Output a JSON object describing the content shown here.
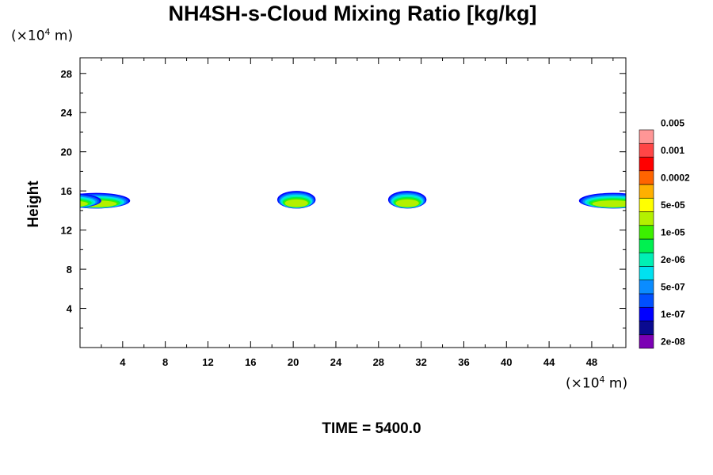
{
  "chart_data": {
    "type": "heatmap",
    "title": "NH4SH-s-Cloud Mixing Ratio [kg/kg]",
    "ylabel": "Height",
    "x_unit_prefix": "(×10",
    "x_unit_exp": "4",
    "x_unit_suffix": " m)",
    "y_unit_prefix": "(×10",
    "y_unit_exp": "4",
    "y_unit_suffix": " m)",
    "xlim": [
      0,
      51.2
    ],
    "ylim": [
      0,
      29.6
    ],
    "x_ticks": [
      4,
      8,
      12,
      16,
      20,
      24,
      28,
      32,
      36,
      40,
      44,
      48
    ],
    "y_ticks": [
      4,
      8,
      12,
      16,
      20,
      24,
      28
    ],
    "footer": "TIME = 5400.0",
    "colorbar": {
      "colors": [
        "#7b00b4",
        "#0a0a90",
        "#0000ff",
        "#0050ff",
        "#0a8cff",
        "#00e1f0",
        "#00f0b4",
        "#00f050",
        "#3cf000",
        "#b4f000",
        "#ffff00",
        "#ffb000",
        "#ff6400",
        "#ff0000",
        "#ff4646",
        "#ff9696"
      ],
      "labels": [
        "2e-08",
        "1e-07",
        "5e-07",
        "2e-06",
        "1e-05",
        "5e-05",
        "0.0002",
        "0.001",
        "0.005"
      ]
    },
    "cloud_layers": [
      {
        "x_center": 1.5,
        "x_half_width": 3.2,
        "z_bottom": 14.2,
        "z_top": 15.8,
        "max_level": "5e-05"
      },
      {
        "x_center": 20.3,
        "x_half_width": 1.8,
        "z_bottom": 14.2,
        "z_top": 16.0,
        "max_level": "5e-05"
      },
      {
        "x_center": 30.7,
        "x_half_width": 1.8,
        "z_bottom": 14.2,
        "z_top": 16.0,
        "max_level": "5e-05"
      },
      {
        "x_center": 50.0,
        "x_half_width": 3.2,
        "z_bottom": 14.2,
        "z_top": 15.8,
        "max_level": "5e-05"
      }
    ]
  }
}
